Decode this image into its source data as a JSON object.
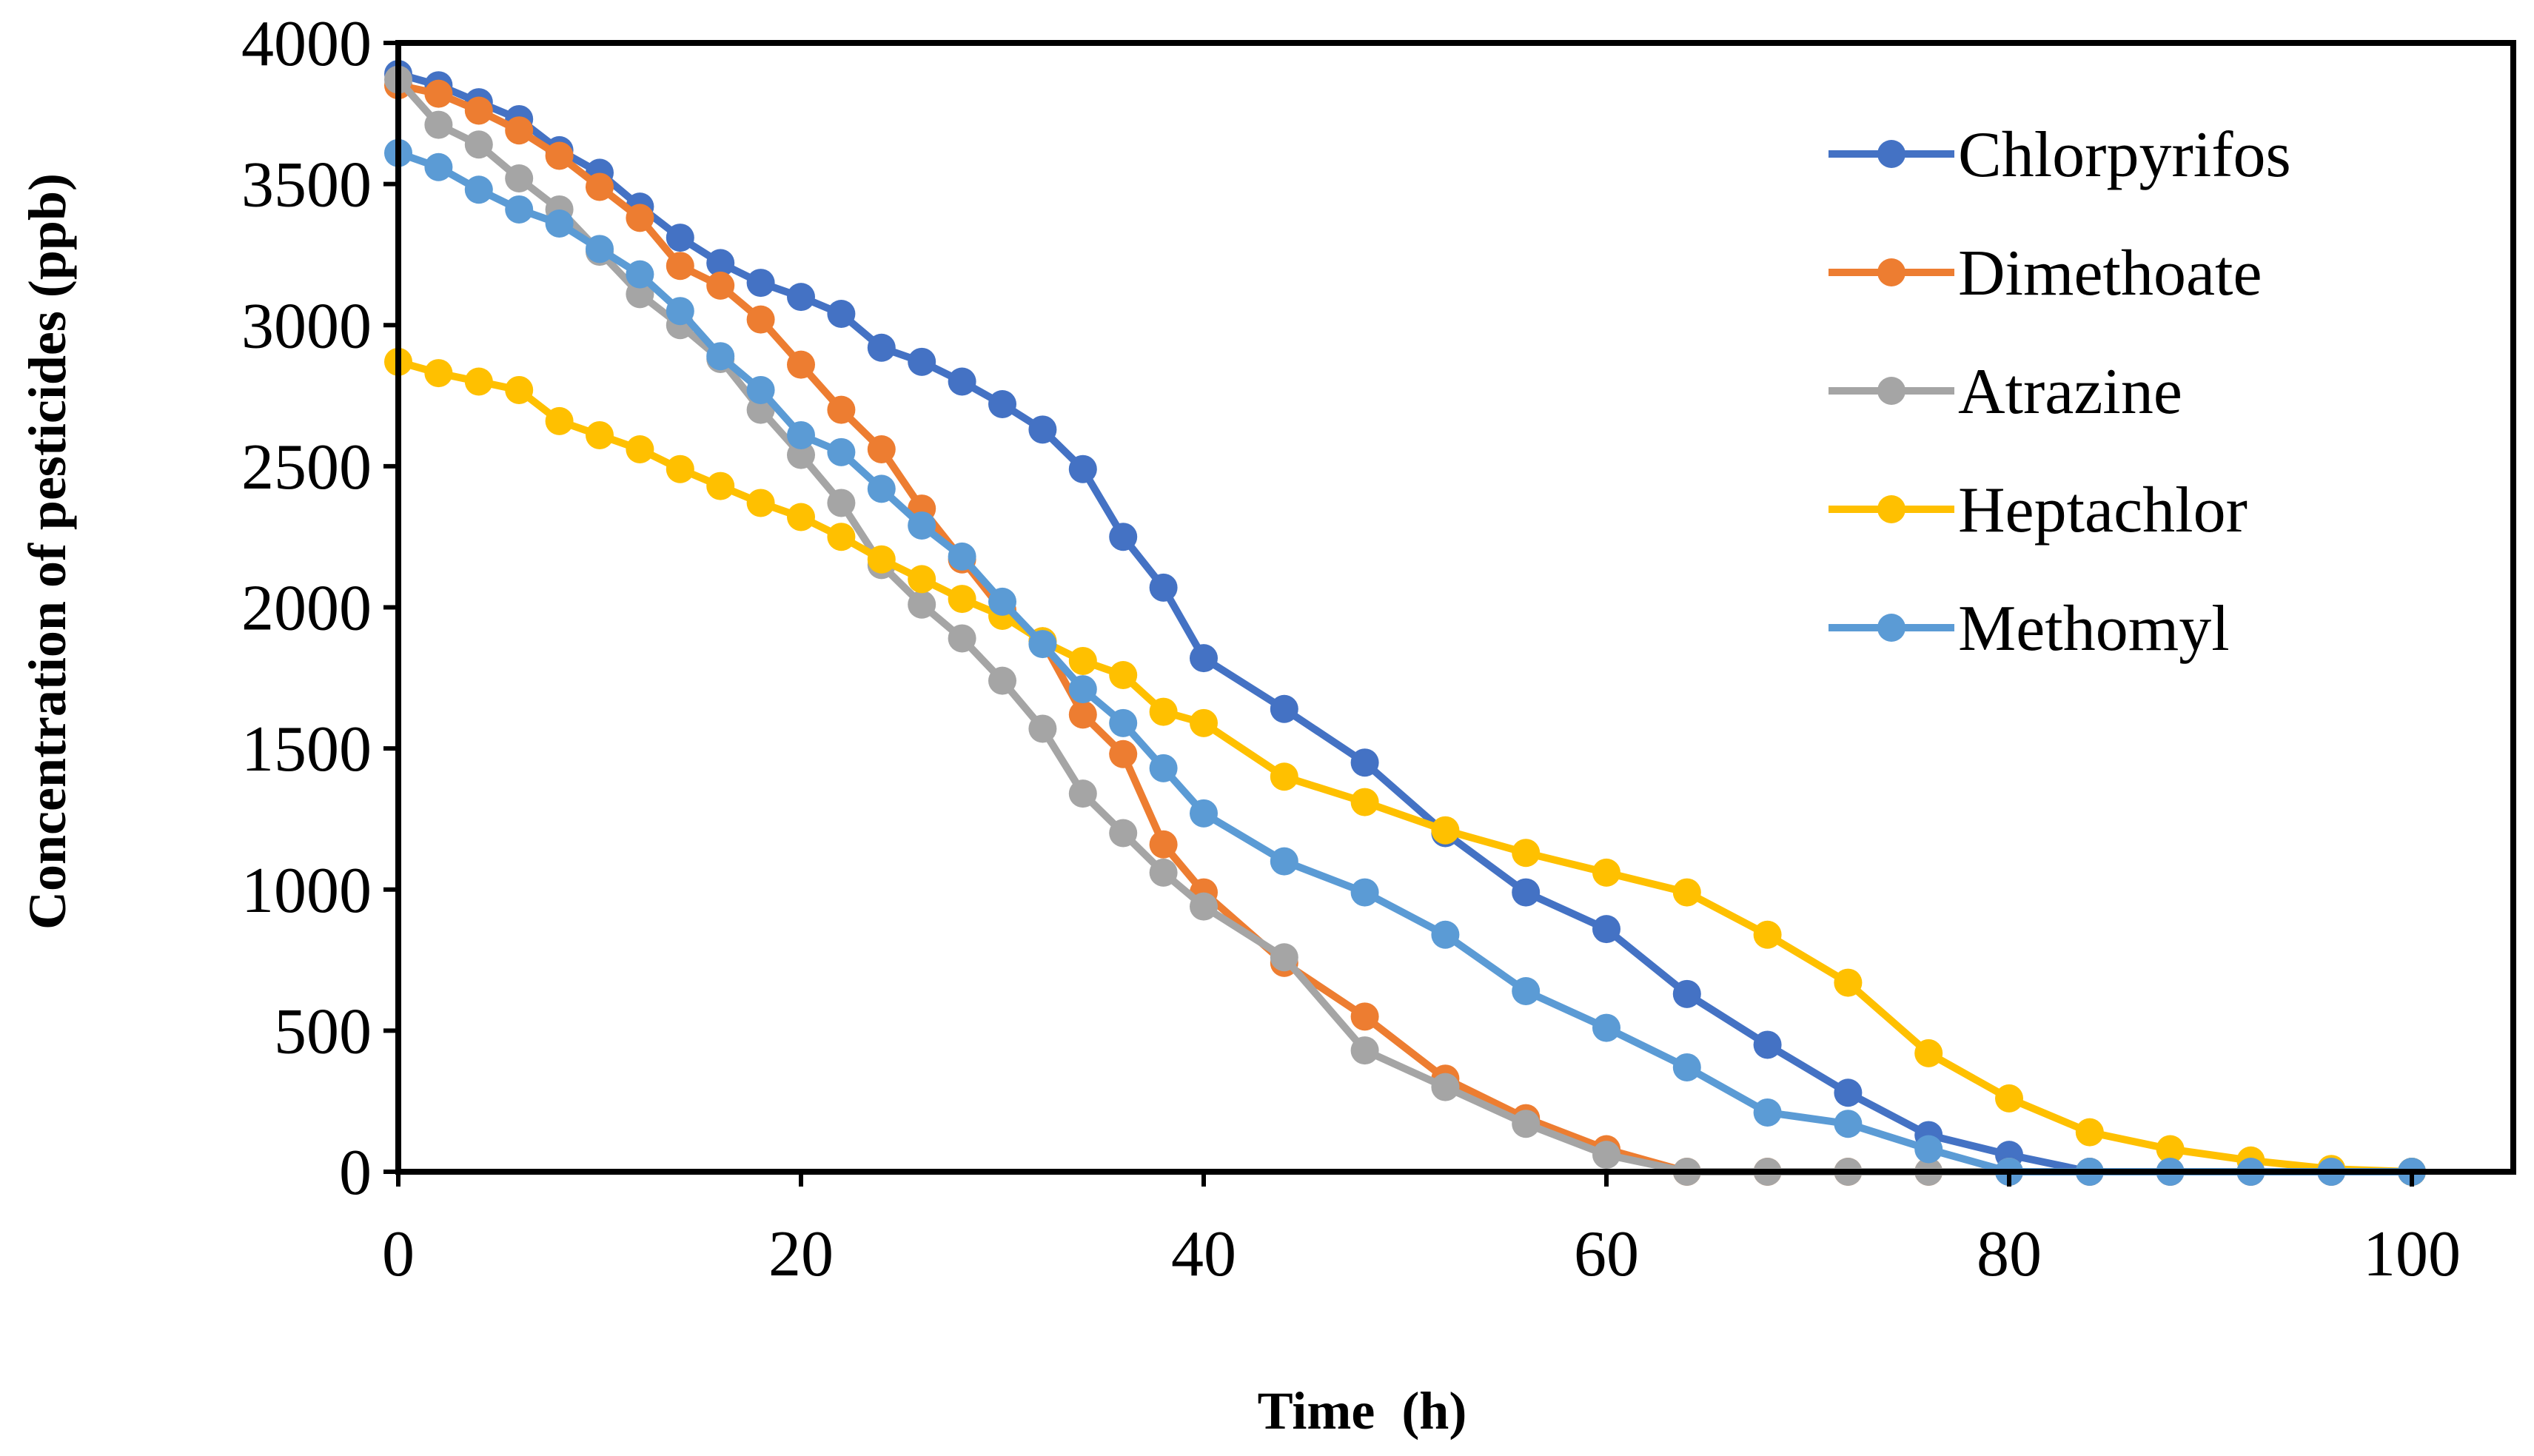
{
  "chart_data": {
    "type": "line",
    "xlabel": "Time  (h)",
    "ylabel": "Concentration of pesticides (ppb)",
    "xlim": [
      0,
      100
    ],
    "ylim": [
      0,
      4000
    ],
    "x_ticks": [
      0,
      20,
      40,
      60,
      80,
      100
    ],
    "y_ticks": [
      0,
      500,
      1000,
      1500,
      2000,
      2500,
      3000,
      3500,
      4000
    ],
    "grid": false,
    "legend_position": "top-right",
    "series": [
      {
        "name": "Chlorpyrifos",
        "color": "#4472C4",
        "x": [
          0,
          2,
          4,
          6,
          8,
          10,
          12,
          14,
          16,
          18,
          20,
          22,
          24,
          26,
          28,
          30,
          32,
          34,
          36,
          38,
          40,
          44,
          48,
          52,
          56,
          60,
          64,
          68,
          72,
          76,
          80,
          84,
          88,
          92,
          96,
          100
        ],
        "y": [
          3890,
          3850,
          3790,
          3730,
          3620,
          3540,
          3420,
          3310,
          3220,
          3150,
          3100,
          3040,
          2920,
          2870,
          2800,
          2720,
          2630,
          2490,
          2250,
          2070,
          1820,
          1640,
          1450,
          1200,
          990,
          860,
          630,
          450,
          280,
          130,
          60,
          0,
          0,
          0,
          0,
          0
        ]
      },
      {
        "name": "Dimethoate",
        "color": "#ED7D31",
        "x": [
          0,
          2,
          4,
          6,
          8,
          10,
          12,
          14,
          16,
          18,
          20,
          22,
          24,
          26,
          28,
          30,
          32,
          34,
          36,
          38,
          40,
          44,
          48,
          52,
          56,
          60,
          64,
          68,
          72,
          76,
          80,
          84,
          88,
          92,
          96,
          100
        ],
        "y": [
          3850,
          3820,
          3760,
          3690,
          3600,
          3490,
          3380,
          3210,
          3140,
          3020,
          2860,
          2700,
          2560,
          2350,
          2170,
          1990,
          1880,
          1620,
          1480,
          1160,
          990,
          740,
          550,
          330,
          190,
          80,
          0,
          0,
          0,
          0,
          0,
          0,
          0,
          0,
          0,
          0
        ]
      },
      {
        "name": "Atrazine",
        "color": "#A5A5A5",
        "x": [
          0,
          2,
          4,
          6,
          8,
          10,
          12,
          14,
          16,
          18,
          20,
          22,
          24,
          26,
          28,
          30,
          32,
          34,
          36,
          38,
          40,
          44,
          48,
          52,
          56,
          60,
          64,
          68,
          72,
          76,
          80,
          84,
          88,
          92,
          96,
          100
        ],
        "y": [
          3870,
          3710,
          3640,
          3520,
          3410,
          3260,
          3110,
          3000,
          2880,
          2700,
          2540,
          2370,
          2150,
          2010,
          1890,
          1740,
          1570,
          1340,
          1200,
          1060,
          940,
          760,
          430,
          300,
          170,
          60,
          0,
          0,
          0,
          0,
          0,
          0,
          0,
          0,
          0,
          0
        ]
      },
      {
        "name": "Heptachlor",
        "color": "#FFC000",
        "x": [
          0,
          2,
          4,
          6,
          8,
          10,
          12,
          14,
          16,
          18,
          20,
          22,
          24,
          26,
          28,
          30,
          32,
          34,
          36,
          38,
          40,
          44,
          48,
          52,
          56,
          60,
          64,
          68,
          72,
          76,
          80,
          84,
          88,
          92,
          96,
          100
        ],
        "y": [
          2870,
          2830,
          2800,
          2770,
          2660,
          2610,
          2560,
          2490,
          2430,
          2370,
          2320,
          2250,
          2170,
          2100,
          2030,
          1970,
          1880,
          1810,
          1760,
          1630,
          1590,
          1400,
          1310,
          1210,
          1130,
          1060,
          990,
          840,
          670,
          420,
          260,
          140,
          80,
          40,
          10,
          0
        ]
      },
      {
        "name": "Methomyl",
        "color": "#5B9BD5",
        "x": [
          0,
          2,
          4,
          6,
          8,
          10,
          12,
          14,
          16,
          18,
          20,
          22,
          24,
          26,
          28,
          30,
          32,
          34,
          36,
          38,
          40,
          44,
          48,
          52,
          56,
          60,
          64,
          68,
          72,
          76,
          80,
          84,
          88,
          92,
          96,
          100
        ],
        "y": [
          3610,
          3560,
          3480,
          3410,
          3360,
          3270,
          3180,
          3050,
          2890,
          2770,
          2610,
          2550,
          2420,
          2290,
          2180,
          2020,
          1870,
          1710,
          1590,
          1430,
          1270,
          1100,
          990,
          840,
          640,
          510,
          370,
          210,
          170,
          80,
          0,
          0,
          0,
          0,
          0,
          0
        ]
      }
    ]
  }
}
